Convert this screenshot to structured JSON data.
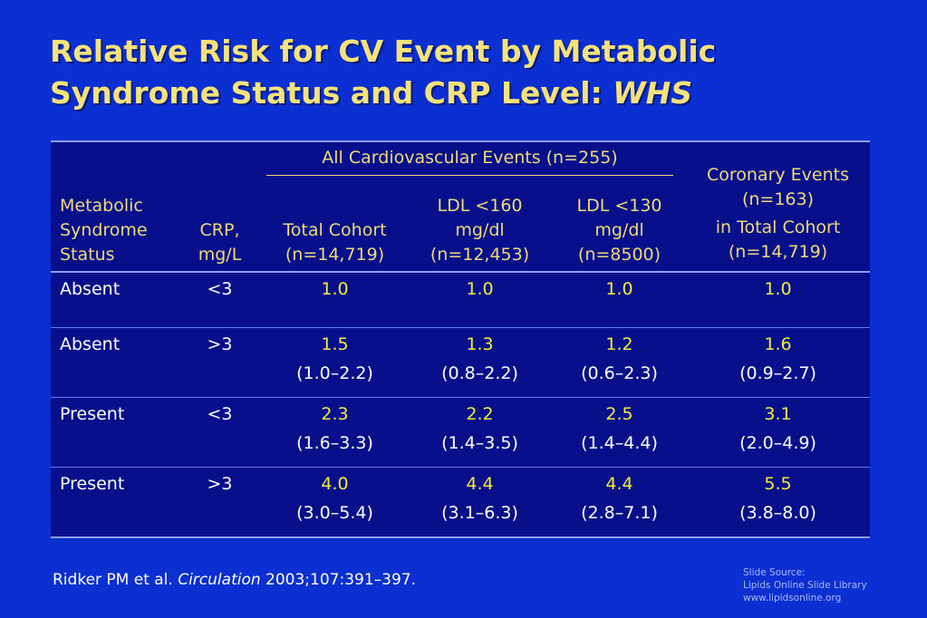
{
  "title": {
    "line1": "Relative Risk for CV Event by Metabolic",
    "line2": "Syndrome Status and CRP Level: ",
    "line2_italic": "WHS"
  },
  "table": {
    "headers": {
      "metabolic": "Metabolic Syndrome Status",
      "crp": "CRP, mg/L",
      "group_all": "All Cardiovascular Events (n=255)",
      "total_cohort": "Total Cohort (n=14,719)",
      "ldl160": "LDL <160 mg/dl (n=12,453)",
      "ldl130": "LDL <130 mg/dl (n=8500)",
      "coronary_1": "Coronary Events (n=163)",
      "coronary_2": "in Total Cohort (n=14,719)"
    },
    "rows": [
      {
        "status": "Absent",
        "crp": "<3",
        "cells": [
          {
            "value": "1.0",
            "ci": ""
          },
          {
            "value": "1.0",
            "ci": ""
          },
          {
            "value": "1.0",
            "ci": ""
          },
          {
            "value": "1.0",
            "ci": ""
          }
        ]
      },
      {
        "status": "Absent",
        "crp": ">3",
        "cells": [
          {
            "value": "1.5",
            "ci": "(1.0–2.2)"
          },
          {
            "value": "1.3",
            "ci": "(0.8–2.2)"
          },
          {
            "value": "1.2",
            "ci": "(0.6–2.3)"
          },
          {
            "value": "1.6",
            "ci": "(0.9–2.7)"
          }
        ]
      },
      {
        "status": "Present",
        "crp": "<3",
        "cells": [
          {
            "value": "2.3",
            "ci": "(1.6–3.3)"
          },
          {
            "value": "2.2",
            "ci": "(1.4–3.5)"
          },
          {
            "value": "2.5",
            "ci": "(1.4–4.4)"
          },
          {
            "value": "3.1",
            "ci": "(2.0–4.9)"
          }
        ]
      },
      {
        "status": "Present",
        "crp": ">3",
        "cells": [
          {
            "value": "4.0",
            "ci": "(3.0–5.4)"
          },
          {
            "value": "4.4",
            "ci": "(3.1–6.3)"
          },
          {
            "value": "4.4",
            "ci": "(2.8–7.1)"
          },
          {
            "value": "5.5",
            "ci": "(3.8–8.0)"
          }
        ]
      }
    ]
  },
  "footnote": {
    "authors": "Ridker PM et al. ",
    "journal": "Circulation",
    "citation": " 2003;107:391–397."
  },
  "source": {
    "line1": "Slide Source:",
    "line2": "Lipids Online Slide Library",
    "line3": "www.lipidsonline.org"
  },
  "colors": {
    "background": "#0b2fd0",
    "table_bg": "#07108a",
    "title": "#f5e27a",
    "value": "#f5ea3c"
  }
}
